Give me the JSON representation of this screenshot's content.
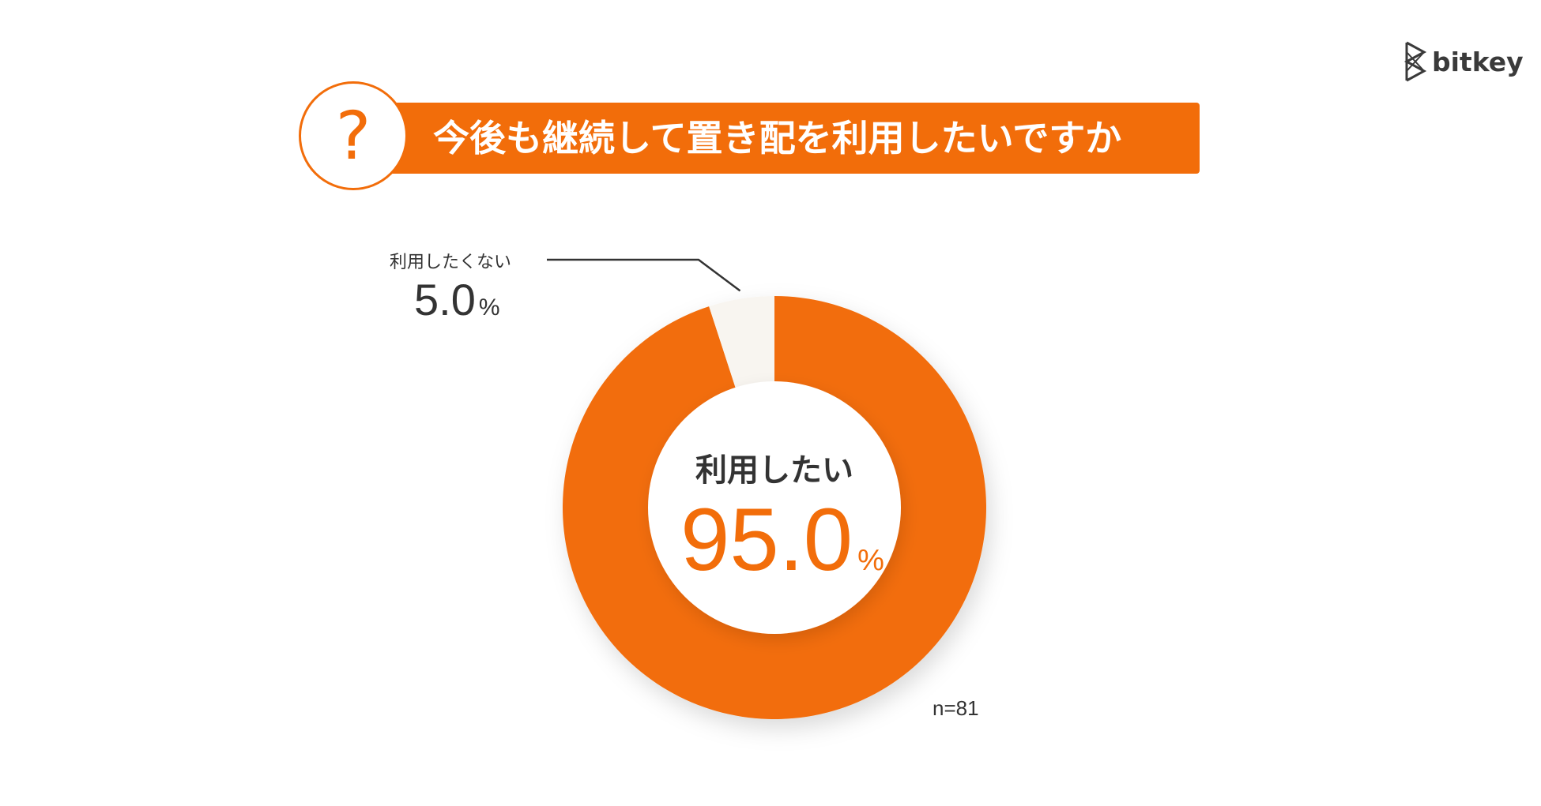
{
  "brand": {
    "logo_text": "bitkey",
    "logo_icon": "bitkey-logo-icon"
  },
  "header": {
    "badge_glyph": "?",
    "title": "今後も継続して置き配を利用したいですか"
  },
  "colors": {
    "accent": "#f26d0a",
    "minor_slice": "#f8f5f0",
    "text": "#333333"
  },
  "chart_data": {
    "type": "pie",
    "subtype": "donut",
    "categories": [
      "利用したい",
      "利用したくない"
    ],
    "values": [
      95.0,
      5.0
    ],
    "unit": "%",
    "labels": {
      "major": {
        "name": "利用したい",
        "value": "95.0",
        "unit": "%"
      },
      "minor": {
        "name": "利用したくない",
        "value": "5.0",
        "unit": "%"
      }
    },
    "sample_size": "n=81",
    "start_angle": "top",
    "direction": "clockwise",
    "legend": "none"
  }
}
